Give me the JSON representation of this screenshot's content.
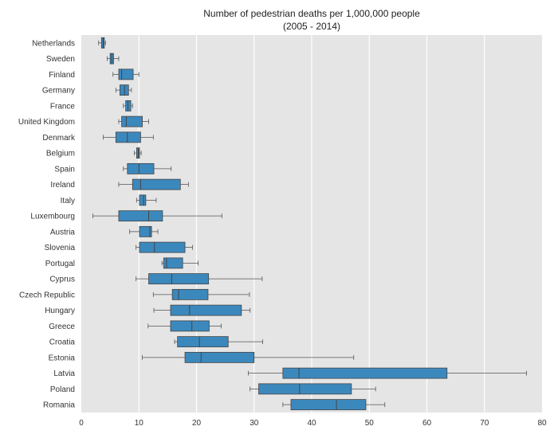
{
  "chart_data": {
    "type": "boxplot",
    "orientation": "horizontal",
    "title": "Number of pedestrian deaths per 1,000,000 people",
    "subtitle": "(2005 - 2014)",
    "xlabel": "",
    "ylabel": "",
    "xlim": [
      0,
      80
    ],
    "xticks": [
      0,
      10,
      20,
      30,
      40,
      50,
      60,
      70,
      80
    ],
    "grid": true,
    "legend": "none",
    "colors": {
      "plot_background": "#e5e5e5",
      "grid": "#ffffff",
      "box_fill": "#3b88bd",
      "box_edge": "#444444",
      "whisker": "#555555"
    },
    "categories": [
      "Netherlands",
      "Sweden",
      "Finland",
      "Germany",
      "France",
      "United Kingdom",
      "Denmark",
      "Belgium",
      "Spain",
      "Ireland",
      "Italy",
      "Luxembourg",
      "Austria",
      "Slovenia",
      "Portugal",
      "Cyprus",
      "Czech Republic",
      "Hungary",
      "Greece",
      "Croatia",
      "Estonia",
      "Latvia",
      "Poland",
      "Romania"
    ],
    "boxes": [
      {
        "category": "Netherlands",
        "min": 3.0,
        "q1": 3.5,
        "median": 3.8,
        "q3": 4.0,
        "max": 4.2
      },
      {
        "category": "Sweden",
        "min": 4.5,
        "q1": 5.0,
        "median": 5.3,
        "q3": 5.6,
        "max": 6.5
      },
      {
        "category": "Finland",
        "min": 5.5,
        "q1": 6.5,
        "median": 7.0,
        "q3": 9.0,
        "max": 10.0
      },
      {
        "category": "Germany",
        "min": 6.0,
        "q1": 6.7,
        "median": 7.5,
        "q3": 8.2,
        "max": 8.7
      },
      {
        "category": "France",
        "min": 7.3,
        "q1": 7.7,
        "median": 8.1,
        "q3": 8.6,
        "max": 8.9
      },
      {
        "category": "United Kingdom",
        "min": 6.5,
        "q1": 7.0,
        "median": 7.8,
        "q3": 10.6,
        "max": 11.7
      },
      {
        "category": "Denmark",
        "min": 3.8,
        "q1": 6.0,
        "median": 8.0,
        "q3": 10.3,
        "max": 12.5
      },
      {
        "category": "Belgium",
        "min": 9.2,
        "q1": 9.6,
        "median": 9.9,
        "q3": 10.1,
        "max": 10.4
      },
      {
        "category": "Spain",
        "min": 7.3,
        "q1": 8.0,
        "median": 10.0,
        "q3": 12.6,
        "max": 15.6
      },
      {
        "category": "Ireland",
        "min": 6.5,
        "q1": 8.9,
        "median": 10.3,
        "q3": 17.2,
        "max": 18.6
      },
      {
        "category": "Italy",
        "min": 9.6,
        "q1": 10.1,
        "median": 10.8,
        "q3": 11.2,
        "max": 13.0
      },
      {
        "category": "Luxembourg",
        "min": 2.0,
        "q1": 6.5,
        "median": 11.7,
        "q3": 14.1,
        "max": 24.4
      },
      {
        "category": "Austria",
        "min": 8.4,
        "q1": 10.1,
        "median": 11.9,
        "q3": 12.2,
        "max": 13.3
      },
      {
        "category": "Slovenia",
        "min": 9.5,
        "q1": 10.1,
        "median": 12.7,
        "q3": 18.0,
        "max": 19.3
      },
      {
        "category": "Portugal",
        "min": 14.0,
        "q1": 14.3,
        "median": 14.8,
        "q3": 17.6,
        "max": 20.3
      },
      {
        "category": "Cyprus",
        "min": 9.5,
        "q1": 11.7,
        "median": 15.7,
        "q3": 22.1,
        "max": 31.4
      },
      {
        "category": "Czech Republic",
        "min": 12.5,
        "q1": 15.8,
        "median": 16.9,
        "q3": 22.0,
        "max": 29.2
      },
      {
        "category": "Hungary",
        "min": 12.6,
        "q1": 15.5,
        "median": 18.8,
        "q3": 27.8,
        "max": 29.3
      },
      {
        "category": "Greece",
        "min": 11.6,
        "q1": 15.5,
        "median": 19.2,
        "q3": 22.2,
        "max": 24.3
      },
      {
        "category": "Croatia",
        "min": 16.2,
        "q1": 16.7,
        "median": 20.5,
        "q3": 25.5,
        "max": 31.5
      },
      {
        "category": "Estonia",
        "min": 10.6,
        "q1": 18.0,
        "median": 20.8,
        "q3": 30.0,
        "max": 47.3
      },
      {
        "category": "Latvia",
        "min": 29.0,
        "q1": 35.0,
        "median": 37.8,
        "q3": 63.5,
        "max": 77.3
      },
      {
        "category": "Poland",
        "min": 29.3,
        "q1": 30.8,
        "median": 37.9,
        "q3": 46.9,
        "max": 51.1
      },
      {
        "category": "Romania",
        "min": 35.0,
        "q1": 36.4,
        "median": 44.3,
        "q3": 49.4,
        "max": 52.7
      }
    ]
  }
}
